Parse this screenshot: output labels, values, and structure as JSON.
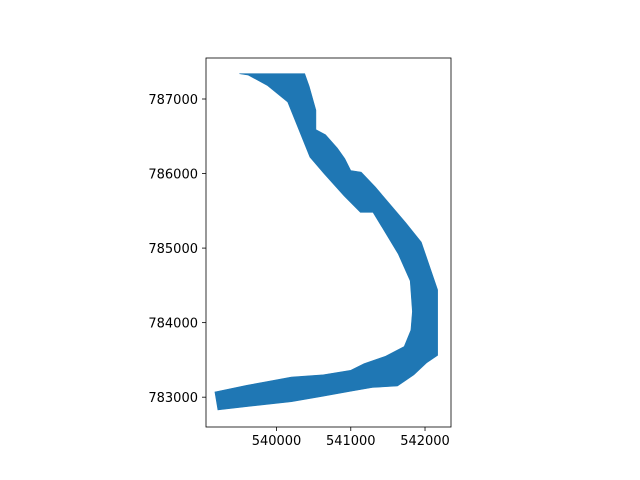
{
  "chart_data": {
    "type": "area",
    "title": "",
    "xlabel": "",
    "ylabel": "",
    "xlim": [
      539050,
      542350
    ],
    "ylim": [
      782600,
      787550
    ],
    "x_ticks": [
      {
        "value": 540000,
        "label": "540000"
      },
      {
        "value": 541000,
        "label": "541000"
      },
      {
        "value": 542000,
        "label": "542000"
      }
    ],
    "y_ticks": [
      {
        "value": 783000,
        "label": "783000"
      },
      {
        "value": 784000,
        "label": "784000"
      },
      {
        "value": 785000,
        "label": "785000"
      },
      {
        "value": 786000,
        "label": "786000"
      },
      {
        "value": 787000,
        "label": "787000"
      }
    ],
    "grid": false,
    "fill_color": "#1f77b4",
    "polygon": [
      [
        539500,
        787340
      ],
      [
        539620,
        787320
      ],
      [
        539880,
        787180
      ],
      [
        540150,
        786960
      ],
      [
        540450,
        786220
      ],
      [
        540640,
        786000
      ],
      [
        540910,
        785700
      ],
      [
        541130,
        785480
      ],
      [
        541300,
        785480
      ],
      [
        541470,
        785200
      ],
      [
        541640,
        784920
      ],
      [
        541800,
        784560
      ],
      [
        541830,
        784150
      ],
      [
        541810,
        783900
      ],
      [
        541720,
        783680
      ],
      [
        541470,
        783550
      ],
      [
        541180,
        783450
      ],
      [
        541000,
        783360
      ],
      [
        540630,
        783300
      ],
      [
        540200,
        783270
      ],
      [
        539600,
        783160
      ],
      [
        539170,
        783070
      ],
      [
        539210,
        782830
      ],
      [
        539660,
        782880
      ],
      [
        540200,
        782940
      ],
      [
        540610,
        783010
      ],
      [
        541000,
        783080
      ],
      [
        541290,
        783130
      ],
      [
        541630,
        783150
      ],
      [
        541850,
        783300
      ],
      [
        542020,
        783460
      ],
      [
        542170,
        783560
      ],
      [
        542170,
        784440
      ],
      [
        541950,
        785080
      ],
      [
        541740,
        785340
      ],
      [
        541330,
        785820
      ],
      [
        541140,
        786020
      ],
      [
        541000,
        786040
      ],
      [
        540920,
        786200
      ],
      [
        540820,
        786340
      ],
      [
        540660,
        786520
      ],
      [
        540530,
        786590
      ],
      [
        540530,
        786850
      ],
      [
        540440,
        787170
      ],
      [
        540380,
        787340
      ]
    ]
  }
}
